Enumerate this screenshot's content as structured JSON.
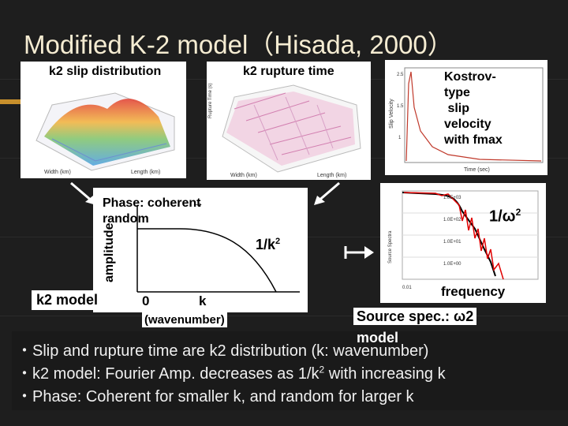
{
  "slide": {
    "title": "Modified K-2 model（Hisada, 2000）"
  },
  "panels": {
    "slip": {
      "label": "k2 slip distribution",
      "image_name": "slip-distribution-3d-plot"
    },
    "rupture": {
      "label": "k2 rupture time",
      "image_name": "rupture-time-3d-plot"
    },
    "kostrov": {
      "label_lines": [
        "Kostrov-",
        "type",
        " slip",
        "velocity",
        "with fmax"
      ],
      "image_name": "slip-velocity-plot"
    }
  },
  "k2_plot": {
    "model_label": "k2 model",
    "ylabel": "amplitude",
    "phase_label_line1": "Phase: coherent",
    "phase_label_line2": "random",
    "phase_arrow": "→",
    "decay_label": "1/k",
    "decay_exp": "2",
    "x_origin": "0",
    "x_k": "k",
    "x_unit": "(wavenumber)"
  },
  "spectrum_plot": {
    "omega_label": "1/ω",
    "omega_exp": "2",
    "freq_label": "frequency",
    "source_label_line1": "Source spec.: ω2",
    "source_label_line2": "model"
  },
  "bullets": [
    {
      "pre": "・Slip and rupture time are k2 distribution (k: wavenumber)",
      "sup": "",
      "post": ""
    },
    {
      "pre": "・k2 model: Fourier Amp. decreases as 1/k",
      "sup": "2",
      "post": " with increasing k"
    },
    {
      "pre": "・Phase: Coherent for smaller k, and random for larger k",
      "sup": "",
      "post": ""
    }
  ],
  "colors": {
    "title": "#f5ecd2",
    "background": "#1e1e1e",
    "spectrum_red": "#e00000"
  }
}
